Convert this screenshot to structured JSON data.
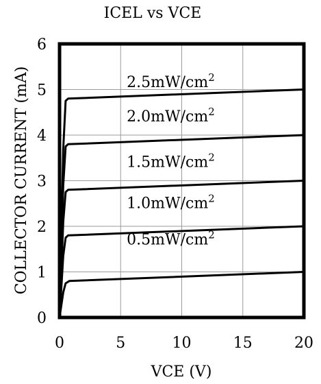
{
  "chart_data": {
    "type": "line",
    "title": "ICEL vs VCE",
    "xlabel": "VCE (V)",
    "ylabel": "COLLECTOR CURRENT (mA)",
    "xlim": [
      0,
      20
    ],
    "ylim": [
      0,
      6
    ],
    "xticks": [
      "0",
      "5",
      "10",
      "15",
      "20"
    ],
    "yticks": [
      "0",
      "1",
      "2",
      "3",
      "4",
      "5",
      "6"
    ],
    "grid": true,
    "series": [
      {
        "name": "0.5mW/cm²",
        "x": [
          0,
          0.3,
          0.5,
          0.8,
          20
        ],
        "y": [
          0,
          0.55,
          0.75,
          0.8,
          1.0
        ]
      },
      {
        "name": "1.0mW/cm²",
        "x": [
          0,
          0.3,
          0.5,
          0.7,
          20
        ],
        "y": [
          0,
          1.35,
          1.75,
          1.8,
          2.0
        ]
      },
      {
        "name": "1.5mW/cm²",
        "x": [
          0,
          0.3,
          0.5,
          0.7,
          20
        ],
        "y": [
          0,
          2.1,
          2.75,
          2.8,
          3.0
        ]
      },
      {
        "name": "2.0mW/cm²",
        "x": [
          0,
          0.3,
          0.5,
          0.7,
          20
        ],
        "y": [
          0,
          2.9,
          3.75,
          3.8,
          4.0
        ]
      },
      {
        "name": "2.5mW/cm²",
        "x": [
          0,
          0.3,
          0.5,
          0.7,
          20
        ],
        "y": [
          0,
          3.7,
          4.75,
          4.8,
          5.0
        ]
      }
    ],
    "annotations": [
      {
        "base": "2.5mW/cm",
        "sup": "2",
        "x": 5.5,
        "y": 5.05
      },
      {
        "base": "2.0mW/cm",
        "sup": "2",
        "x": 5.5,
        "y": 4.3
      },
      {
        "base": "1.5mW/cm",
        "sup": "2",
        "x": 5.5,
        "y": 3.3
      },
      {
        "base": "1.0mW/cm",
        "sup": "2",
        "x": 5.5,
        "y": 2.4
      },
      {
        "base": "0.5mW/cm",
        "sup": "2",
        "x": 5.5,
        "y": 1.6
      }
    ]
  }
}
